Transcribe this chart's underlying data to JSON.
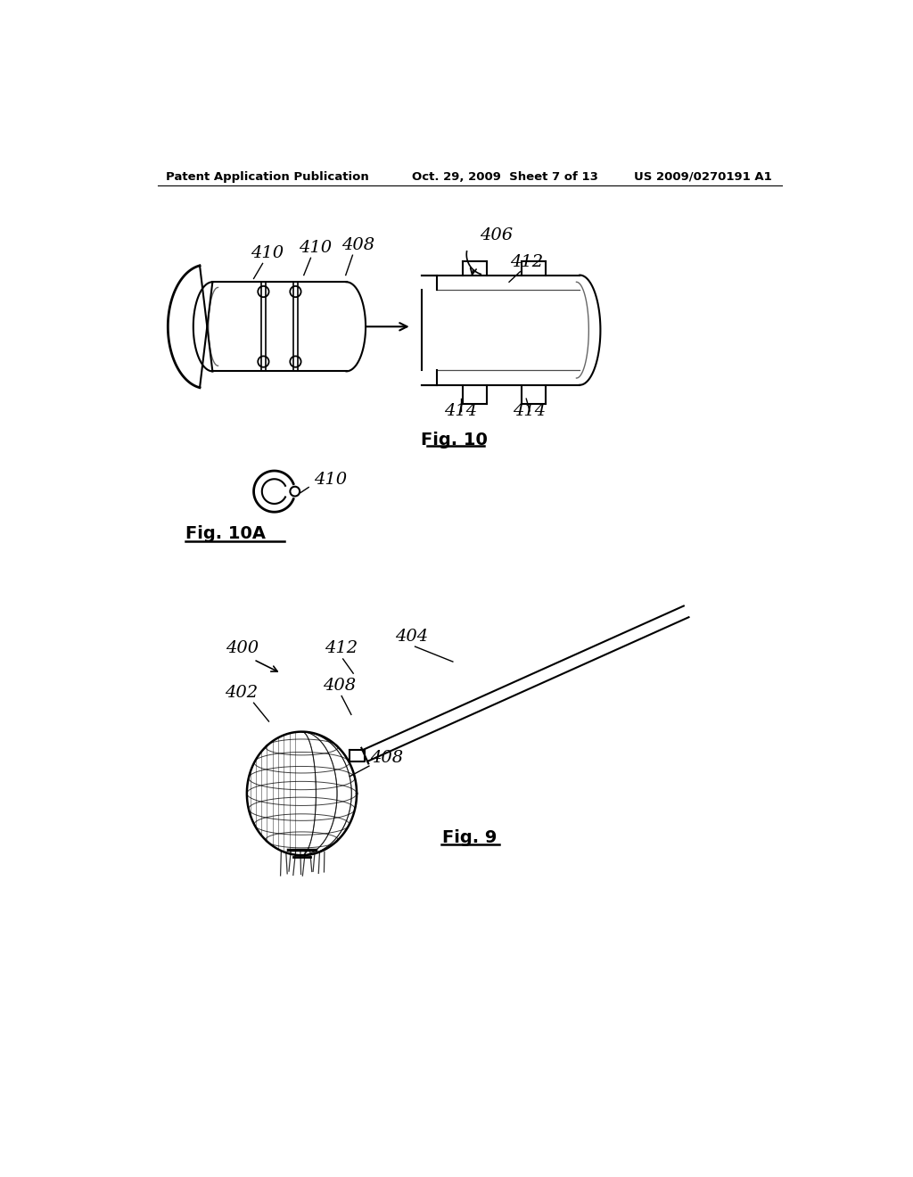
{
  "background_color": "#ffffff",
  "header_left": "Patent Application Publication",
  "header_center": "Oct. 29, 2009  Sheet 7 of 13",
  "header_right": "US 2009/0270191 A1",
  "fig10_label": "Fig. 10",
  "fig10a_label": "Fig. 10A",
  "fig9_label": "Fig. 9"
}
